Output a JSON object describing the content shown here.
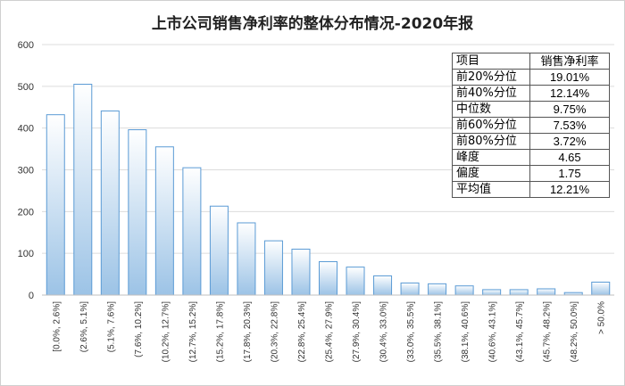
{
  "chart_data": {
    "type": "bar",
    "title": "上市公司销售净利率的整体分布情况-2020年报",
    "xlabel": "",
    "ylabel": "",
    "ylim": [
      0,
      600
    ],
    "yticks": [
      0,
      100,
      200,
      300,
      400,
      500,
      600
    ],
    "grid": true,
    "categories": [
      "[0.0%, 2.6%]",
      "(2.6%, 5.1%]",
      "(5.1%, 7.6%]",
      "(7.6%, 10.2%]",
      "(10.2%, 12.7%]",
      "(12.7%, 15.2%]",
      "(15.2%, 17.8%]",
      "(17.8%, 20.3%]",
      "(20.3%, 22.8%]",
      "(22.8%, 25.4%]",
      "(25.4%, 27.9%]",
      "(27.9%, 30.4%]",
      "(30.4%, 33.0%]",
      "(33.0%, 35.5%]",
      "(35.5%, 38.1%]",
      "(38.1%, 40.6%]",
      "(40.6%, 43.1%]",
      "(43.1%, 45.7%]",
      "(45.7%, 48.2%]",
      "(48.2%, 50.0%]",
      "> 50.0%"
    ],
    "values": [
      432,
      505,
      441,
      396,
      355,
      305,
      213,
      173,
      130,
      110,
      80,
      67,
      46,
      29,
      27,
      22,
      13,
      13,
      15,
      6,
      31
    ],
    "colors": {
      "bar_stroke": "#5b9bd5",
      "bar_top": "#ffffff",
      "bar_bottom": "#9cc3e6"
    }
  },
  "stats_table": {
    "header": [
      "项目",
      "销售净利率"
    ],
    "rows": [
      [
        "前20%分位",
        "19.01%"
      ],
      [
        "前40%分位",
        "12.14%"
      ],
      [
        "中位数",
        "9.75%"
      ],
      [
        "前60%分位",
        "7.53%"
      ],
      [
        "前80%分位",
        "3.72%"
      ],
      [
        "峰度",
        "4.65"
      ],
      [
        "偏度",
        "1.75"
      ],
      [
        "平均值",
        "12.21%"
      ]
    ]
  }
}
